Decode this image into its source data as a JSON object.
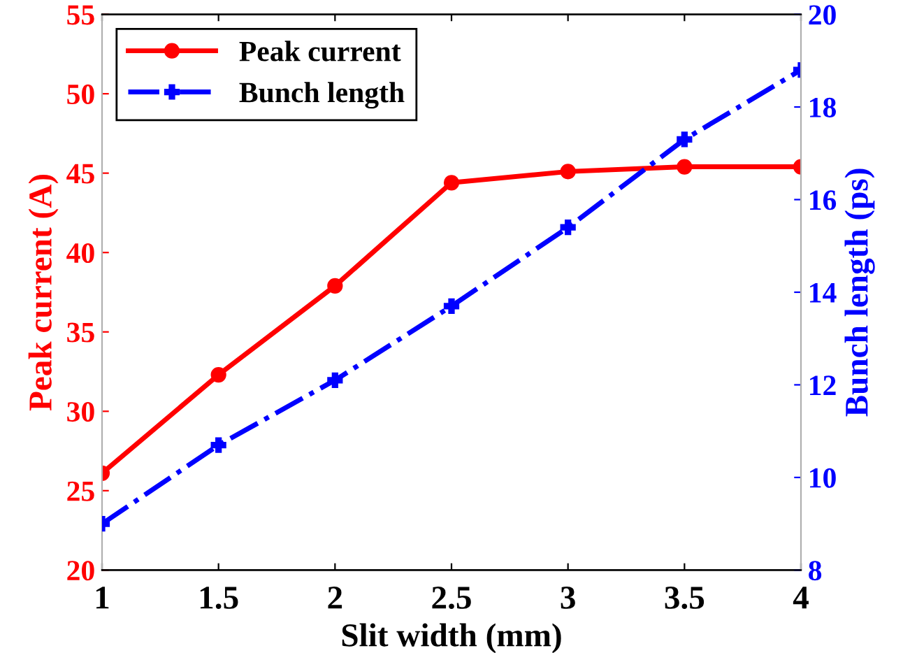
{
  "chart_data": {
    "type": "line",
    "xlabel": "Slit width (mm)",
    "ylabel": "Peak current (A)",
    "y2label": "Bunch length (ps)",
    "x": [
      1,
      1.5,
      2,
      2.5,
      3,
      3.5,
      4
    ],
    "series": [
      {
        "name": "Peak current",
        "color": "#ff0000",
        "values": [
          26.1,
          32.3,
          37.9,
          44.4,
          45.1,
          45.4,
          45.4
        ],
        "marker": "circle",
        "line_style": "solid"
      },
      {
        "name": "Bunch length",
        "color": "#0000ff",
        "values": [
          9.0,
          10.7,
          12.1,
          13.7,
          15.4,
          17.3,
          18.8
        ],
        "marker": "cross",
        "line_style": "dashdot",
        "axis": "y2"
      }
    ],
    "xlim": [
      1,
      4
    ],
    "xticks": [
      1,
      1.5,
      2,
      2.5,
      3,
      3.5,
      4
    ],
    "ylim": [
      20,
      55
    ],
    "yticks": [
      20,
      25,
      30,
      35,
      40,
      45,
      50,
      55
    ],
    "y2lim": [
      8,
      20
    ],
    "y2ticks": [
      8,
      10,
      12,
      14,
      16,
      18,
      20
    ],
    "grid": false,
    "legend": "top left"
  }
}
